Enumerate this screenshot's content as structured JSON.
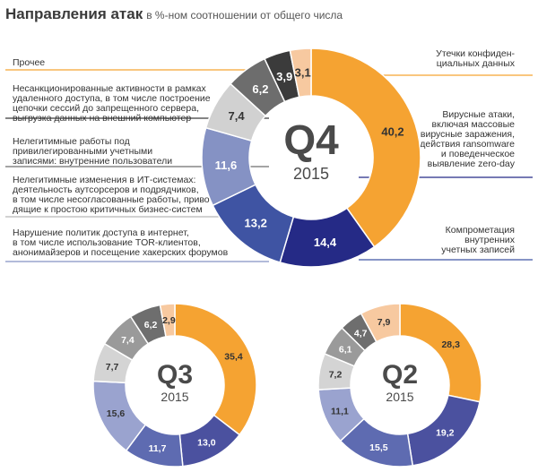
{
  "header": {
    "title": "Направления атак",
    "subtitle": "в %-ном соотношении от общего числа"
  },
  "categories": [
    {
      "key": "prochee",
      "label": [
        "Прочее"
      ]
    },
    {
      "key": "unauth",
      "label": [
        "Несанкционированные активности в рамках",
        "удаленного доступа, в том числе построение",
        "цепочки сессий до запрещенного сервера,",
        "выгрузка данных на внешний компьютер"
      ]
    },
    {
      "key": "illegit_work",
      "label": [
        "Нелегитимные работы под",
        "привилегированными учетными",
        "записями: внутренние пользователи"
      ]
    },
    {
      "key": "illegit_changes",
      "label": [
        "Нелегитимные изменения в ИТ-системах:",
        "деятельность аутсорсеров и подрядчиков,",
        "в том числе несогласованные работы, приво-",
        "дящие к простою критичных бизнес-систем"
      ]
    },
    {
      "key": "policy",
      "label": [
        "Нарушение политик доступа в интернет,",
        "в том числе использование TOR-клиентов,",
        "анонимайзеров и посещение хакерских форумов"
      ]
    },
    {
      "key": "compromise",
      "label": [
        "Компрометация",
        "внутренних",
        "учетных записей"
      ]
    },
    {
      "key": "virus",
      "label": [
        "Вирусные атаки,",
        "включая массовые",
        "вирусные заражения,",
        "действия ransomware",
        "и поведенческое",
        "выявление zero-day"
      ]
    },
    {
      "key": "leaks",
      "label": [
        "Утечки конфиден-",
        "циальных данных"
      ]
    }
  ],
  "chart_data": [
    {
      "type": "pie",
      "quarter": "Q4",
      "year": "2015",
      "slices": [
        {
          "key": "leaks",
          "value": 40.2,
          "label": "40,2",
          "color": "#f5a332"
        },
        {
          "key": "virus",
          "value": 14.4,
          "label": "14,4",
          "color": "#252a86"
        },
        {
          "key": "compromise",
          "value": 13.2,
          "label": "13,2",
          "color": "#3f54a3"
        },
        {
          "key": "policy",
          "value": 11.6,
          "label": "11,6",
          "color": "#8592c4"
        },
        {
          "key": "illegit_changes",
          "value": 7.4,
          "label": "7,4",
          "color": "#d1d1d1"
        },
        {
          "key": "illegit_work",
          "value": 6.2,
          "label": "6,2",
          "color": "#6d6d6d"
        },
        {
          "key": "unauth",
          "value": 3.9,
          "label": "3,9",
          "color": "#3b3b3b"
        },
        {
          "key": "prochee",
          "value": 3.1,
          "label": "3,1",
          "color": "#f7c9a0"
        }
      ]
    },
    {
      "type": "pie",
      "quarter": "Q3",
      "year": "2015",
      "slices": [
        {
          "key": "leaks",
          "value": 35.4,
          "label": "35,4",
          "color": "#f5a332"
        },
        {
          "key": "virus",
          "value": 13.0,
          "label": "13,0",
          "color": "#4b519f"
        },
        {
          "key": "compromise",
          "value": 11.7,
          "label": "11,7",
          "color": "#5e6bb1"
        },
        {
          "key": "policy",
          "value": 15.6,
          "label": "15,6",
          "color": "#9aa3cf"
        },
        {
          "key": "illegit_changes",
          "value": 7.7,
          "label": "7,7",
          "color": "#d4d4d4"
        },
        {
          "key": "illegit_work",
          "value": 7.4,
          "label": "7,4",
          "color": "#9a9a9a"
        },
        {
          "key": "unauth",
          "value": 6.2,
          "label": "6,2",
          "color": "#6e6e6e"
        },
        {
          "key": "prochee",
          "value": 2.9,
          "label": "2,9",
          "color": "#f7c9a0"
        }
      ]
    },
    {
      "type": "pie",
      "quarter": "Q2",
      "year": "2015",
      "slices": [
        {
          "key": "leaks",
          "value": 28.3,
          "label": "28,3",
          "color": "#f5a332"
        },
        {
          "key": "virus",
          "value": 19.2,
          "label": "19,2",
          "color": "#4b519f"
        },
        {
          "key": "compromise",
          "value": 15.5,
          "label": "15,5",
          "color": "#5e6bb1"
        },
        {
          "key": "policy",
          "value": 11.1,
          "label": "11,1",
          "color": "#9aa3cf"
        },
        {
          "key": "illegit_changes",
          "value": 7.2,
          "label": "7,2",
          "color": "#d4d4d4"
        },
        {
          "key": "illegit_work",
          "value": 6.1,
          "label": "6,1",
          "color": "#9a9a9a"
        },
        {
          "key": "unauth",
          "value": 4.7,
          "label": "4,7",
          "color": "#6e6e6e"
        },
        {
          "key": "prochee",
          "value": 7.9,
          "label": "7,9",
          "color": "#f7c9a0"
        }
      ]
    }
  ]
}
